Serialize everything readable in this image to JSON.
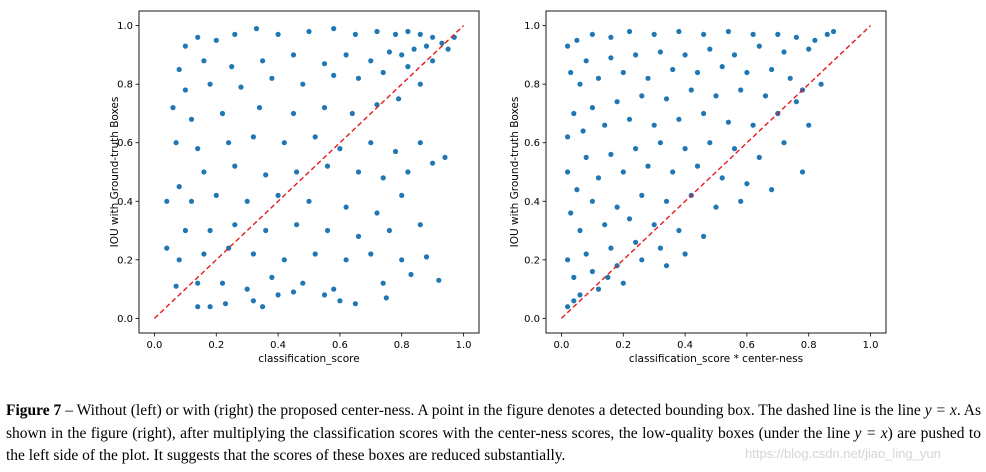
{
  "chart_data": [
    {
      "type": "scatter",
      "xlabel": "classification_score",
      "ylabel": "IOU with Ground-truth Boxes",
      "xlim": [
        -0.05,
        1.05
      ],
      "ylim": [
        -0.05,
        1.05
      ],
      "xticks": [
        "0.0",
        "0.2",
        "0.4",
        "0.6",
        "0.8",
        "1.0"
      ],
      "yticks": [
        "0.0",
        "0.2",
        "0.4",
        "0.6",
        "0.8",
        "1.0"
      ],
      "grid": false,
      "point_color": "#1f77b4",
      "reference_line": {
        "label": "y = x",
        "style": "dashed",
        "color": "#e41a1c"
      },
      "points": [
        [
          0.1,
          0.93
        ],
        [
          0.14,
          0.96
        ],
        [
          0.2,
          0.95
        ],
        [
          0.26,
          0.97
        ],
        [
          0.33,
          0.99
        ],
        [
          0.4,
          0.97
        ],
        [
          0.5,
          0.98
        ],
        [
          0.58,
          0.99
        ],
        [
          0.65,
          0.97
        ],
        [
          0.72,
          0.98
        ],
        [
          0.78,
          0.97
        ],
        [
          0.82,
          0.98
        ],
        [
          0.86,
          0.97
        ],
        [
          0.9,
          0.96
        ],
        [
          0.93,
          0.94
        ],
        [
          0.88,
          0.93
        ],
        [
          0.84,
          0.92
        ],
        [
          0.8,
          0.9
        ],
        [
          0.76,
          0.91
        ],
        [
          0.7,
          0.88
        ],
        [
          0.62,
          0.9
        ],
        [
          0.55,
          0.87
        ],
        [
          0.45,
          0.9
        ],
        [
          0.35,
          0.88
        ],
        [
          0.25,
          0.86
        ],
        [
          0.16,
          0.88
        ],
        [
          0.08,
          0.85
        ],
        [
          0.06,
          0.72
        ],
        [
          0.1,
          0.78
        ],
        [
          0.18,
          0.8
        ],
        [
          0.28,
          0.79
        ],
        [
          0.38,
          0.82
        ],
        [
          0.48,
          0.8
        ],
        [
          0.58,
          0.83
        ],
        [
          0.66,
          0.82
        ],
        [
          0.74,
          0.84
        ],
        [
          0.82,
          0.86
        ],
        [
          0.9,
          0.88
        ],
        [
          0.95,
          0.92
        ],
        [
          0.86,
          0.8
        ],
        [
          0.79,
          0.75
        ],
        [
          0.72,
          0.73
        ],
        [
          0.64,
          0.7
        ],
        [
          0.55,
          0.72
        ],
        [
          0.45,
          0.7
        ],
        [
          0.34,
          0.72
        ],
        [
          0.22,
          0.7
        ],
        [
          0.12,
          0.68
        ],
        [
          0.07,
          0.6
        ],
        [
          0.14,
          0.58
        ],
        [
          0.24,
          0.6
        ],
        [
          0.32,
          0.62
        ],
        [
          0.42,
          0.6
        ],
        [
          0.52,
          0.62
        ],
        [
          0.6,
          0.58
        ],
        [
          0.7,
          0.6
        ],
        [
          0.78,
          0.57
        ],
        [
          0.86,
          0.6
        ],
        [
          0.9,
          0.53
        ],
        [
          0.94,
          0.55
        ],
        [
          0.82,
          0.5
        ],
        [
          0.74,
          0.48
        ],
        [
          0.66,
          0.5
        ],
        [
          0.56,
          0.52
        ],
        [
          0.46,
          0.5
        ],
        [
          0.36,
          0.49
        ],
        [
          0.26,
          0.52
        ],
        [
          0.16,
          0.5
        ],
        [
          0.08,
          0.45
        ],
        [
          0.04,
          0.4
        ],
        [
          0.12,
          0.4
        ],
        [
          0.2,
          0.42
        ],
        [
          0.3,
          0.4
        ],
        [
          0.4,
          0.42
        ],
        [
          0.5,
          0.4
        ],
        [
          0.62,
          0.38
        ],
        [
          0.72,
          0.36
        ],
        [
          0.8,
          0.42
        ],
        [
          0.86,
          0.32
        ],
        [
          0.76,
          0.3
        ],
        [
          0.66,
          0.28
        ],
        [
          0.56,
          0.3
        ],
        [
          0.46,
          0.32
        ],
        [
          0.36,
          0.3
        ],
        [
          0.26,
          0.32
        ],
        [
          0.18,
          0.3
        ],
        [
          0.1,
          0.3
        ],
        [
          0.04,
          0.24
        ],
        [
          0.08,
          0.2
        ],
        [
          0.16,
          0.22
        ],
        [
          0.24,
          0.24
        ],
        [
          0.32,
          0.22
        ],
        [
          0.42,
          0.2
        ],
        [
          0.52,
          0.22
        ],
        [
          0.62,
          0.2
        ],
        [
          0.7,
          0.22
        ],
        [
          0.8,
          0.2
        ],
        [
          0.88,
          0.21
        ],
        [
          0.92,
          0.13
        ],
        [
          0.83,
          0.15
        ],
        [
          0.74,
          0.12
        ],
        [
          0.65,
          0.05
        ],
        [
          0.58,
          0.1
        ],
        [
          0.48,
          0.12
        ],
        [
          0.38,
          0.14
        ],
        [
          0.3,
          0.1
        ],
        [
          0.22,
          0.12
        ],
        [
          0.14,
          0.12
        ],
        [
          0.07,
          0.11
        ],
        [
          0.14,
          0.04
        ],
        [
          0.18,
          0.04
        ],
        [
          0.23,
          0.05
        ],
        [
          0.32,
          0.06
        ],
        [
          0.35,
          0.04
        ],
        [
          0.4,
          0.08
        ],
        [
          0.45,
          0.09
        ],
        [
          0.55,
          0.08
        ],
        [
          0.6,
          0.06
        ],
        [
          0.75,
          0.07
        ],
        [
          0.97,
          0.96
        ]
      ]
    },
    {
      "type": "scatter",
      "xlabel": "classification_score * center-ness",
      "ylabel": "IOU with Ground-truth Boxes",
      "xlim": [
        -0.05,
        1.05
      ],
      "ylim": [
        -0.05,
        1.05
      ],
      "xticks": [
        "0.0",
        "0.2",
        "0.4",
        "0.6",
        "0.8",
        "1.0"
      ],
      "yticks": [
        "0.0",
        "0.2",
        "0.4",
        "0.6",
        "0.8",
        "1.0"
      ],
      "grid": false,
      "point_color": "#1f77b4",
      "reference_line": {
        "label": "y = x",
        "style": "dashed",
        "color": "#e41a1c"
      },
      "points": [
        [
          0.02,
          0.93
        ],
        [
          0.05,
          0.95
        ],
        [
          0.1,
          0.97
        ],
        [
          0.16,
          0.96
        ],
        [
          0.22,
          0.98
        ],
        [
          0.3,
          0.97
        ],
        [
          0.38,
          0.98
        ],
        [
          0.46,
          0.97
        ],
        [
          0.54,
          0.98
        ],
        [
          0.62,
          0.97
        ],
        [
          0.7,
          0.97
        ],
        [
          0.76,
          0.96
        ],
        [
          0.82,
          0.95
        ],
        [
          0.86,
          0.97
        ],
        [
          0.8,
          0.92
        ],
        [
          0.72,
          0.91
        ],
        [
          0.64,
          0.93
        ],
        [
          0.56,
          0.9
        ],
        [
          0.48,
          0.92
        ],
        [
          0.4,
          0.9
        ],
        [
          0.32,
          0.91
        ],
        [
          0.24,
          0.9
        ],
        [
          0.16,
          0.89
        ],
        [
          0.08,
          0.88
        ],
        [
          0.03,
          0.84
        ],
        [
          0.06,
          0.8
        ],
        [
          0.12,
          0.82
        ],
        [
          0.2,
          0.84
        ],
        [
          0.28,
          0.82
        ],
        [
          0.36,
          0.85
        ],
        [
          0.44,
          0.84
        ],
        [
          0.52,
          0.86
        ],
        [
          0.6,
          0.84
        ],
        [
          0.68,
          0.85
        ],
        [
          0.74,
          0.82
        ],
        [
          0.78,
          0.78
        ],
        [
          0.66,
          0.76
        ],
        [
          0.58,
          0.78
        ],
        [
          0.5,
          0.76
        ],
        [
          0.42,
          0.78
        ],
        [
          0.34,
          0.75
        ],
        [
          0.26,
          0.76
        ],
        [
          0.18,
          0.74
        ],
        [
          0.1,
          0.72
        ],
        [
          0.04,
          0.7
        ],
        [
          0.02,
          0.62
        ],
        [
          0.07,
          0.64
        ],
        [
          0.14,
          0.66
        ],
        [
          0.22,
          0.68
        ],
        [
          0.3,
          0.66
        ],
        [
          0.38,
          0.68
        ],
        [
          0.46,
          0.7
        ],
        [
          0.54,
          0.67
        ],
        [
          0.62,
          0.66
        ],
        [
          0.7,
          0.7
        ],
        [
          0.8,
          0.66
        ],
        [
          0.78,
          0.5
        ],
        [
          0.72,
          0.6
        ],
        [
          0.64,
          0.55
        ],
        [
          0.56,
          0.58
        ],
        [
          0.48,
          0.6
        ],
        [
          0.4,
          0.58
        ],
        [
          0.32,
          0.6
        ],
        [
          0.24,
          0.58
        ],
        [
          0.16,
          0.56
        ],
        [
          0.08,
          0.55
        ],
        [
          0.02,
          0.5
        ],
        [
          0.05,
          0.44
        ],
        [
          0.12,
          0.48
        ],
        [
          0.2,
          0.5
        ],
        [
          0.28,
          0.52
        ],
        [
          0.36,
          0.5
        ],
        [
          0.44,
          0.52
        ],
        [
          0.52,
          0.48
        ],
        [
          0.6,
          0.46
        ],
        [
          0.68,
          0.44
        ],
        [
          0.58,
          0.4
        ],
        [
          0.5,
          0.38
        ],
        [
          0.42,
          0.42
        ],
        [
          0.34,
          0.4
        ],
        [
          0.26,
          0.42
        ],
        [
          0.18,
          0.38
        ],
        [
          0.1,
          0.4
        ],
        [
          0.03,
          0.36
        ],
        [
          0.06,
          0.3
        ],
        [
          0.14,
          0.32
        ],
        [
          0.22,
          0.34
        ],
        [
          0.3,
          0.32
        ],
        [
          0.38,
          0.3
        ],
        [
          0.46,
          0.28
        ],
        [
          0.4,
          0.22
        ],
        [
          0.32,
          0.24
        ],
        [
          0.24,
          0.26
        ],
        [
          0.16,
          0.24
        ],
        [
          0.08,
          0.22
        ],
        [
          0.02,
          0.2
        ],
        [
          0.04,
          0.14
        ],
        [
          0.1,
          0.16
        ],
        [
          0.18,
          0.18
        ],
        [
          0.26,
          0.2
        ],
        [
          0.34,
          0.18
        ],
        [
          0.2,
          0.12
        ],
        [
          0.12,
          0.1
        ],
        [
          0.06,
          0.08
        ],
        [
          0.02,
          0.04
        ],
        [
          0.04,
          0.06
        ],
        [
          0.15,
          0.14
        ],
        [
          0.84,
          0.8
        ],
        [
          0.76,
          0.74
        ],
        [
          0.88,
          0.98
        ]
      ]
    }
  ],
  "caption": {
    "label": "Figure 7",
    "dash": " – ",
    "part1": "Without (left) or with (right) the proposed center-ness. A point in the figure denotes a detected bounding box. The dashed line is the line ",
    "math1": "y = x",
    "part2": ". As shown in the figure (right), after multiplying the classification scores with the center-ness scores, the low-quality boxes (under the line ",
    "math2": "y = x",
    "part3": ") are pushed to the left side of the plot. It suggests that the scores of these boxes are reduced substantially."
  },
  "watermark": "https://blog.csdn.net/jiao_ling_yun"
}
